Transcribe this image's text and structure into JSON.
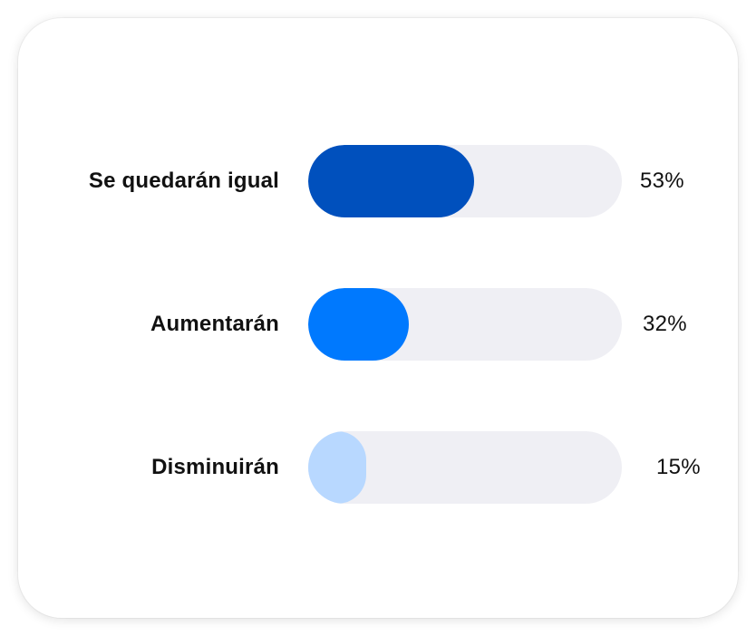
{
  "chart_data": {
    "type": "bar",
    "orientation": "horizontal",
    "categories": [
      "Se quedarán igual",
      "Aumentarán",
      "Disminuirán"
    ],
    "values": [
      53,
      32,
      15
    ],
    "value_labels": [
      "53%",
      "32%",
      "15%"
    ],
    "colors": [
      "#0050bd",
      "#0079fe",
      "#b8d8ff"
    ],
    "track_color": "#efeff4",
    "unit": "%",
    "xlim": [
      0,
      100
    ],
    "grid": false,
    "legend": "none"
  }
}
